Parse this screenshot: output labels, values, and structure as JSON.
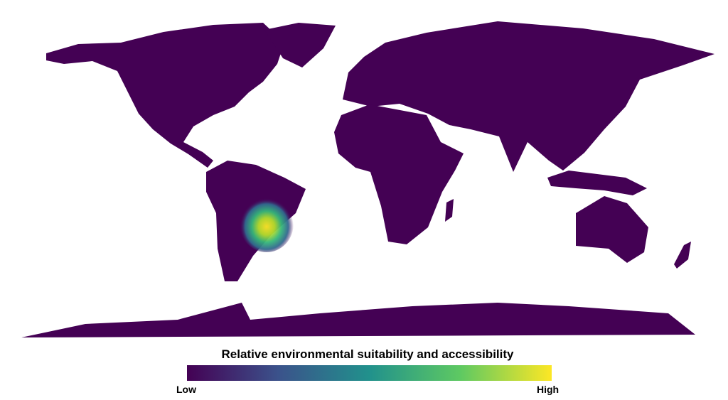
{
  "map": {
    "type": "choropleth-world",
    "highlight_region": "Southeastern South America (southern Brazil, Paraguay, Uruguay, northeastern Argentina)",
    "land_color": "#440154"
  },
  "legend": {
    "title": "Relative environmental suitability and accessibility",
    "low_label": "Low",
    "high_label": "High",
    "colormap": "viridis",
    "colors": [
      "#440154",
      "#3b528b",
      "#21918c",
      "#5ec962",
      "#fde725"
    ]
  }
}
